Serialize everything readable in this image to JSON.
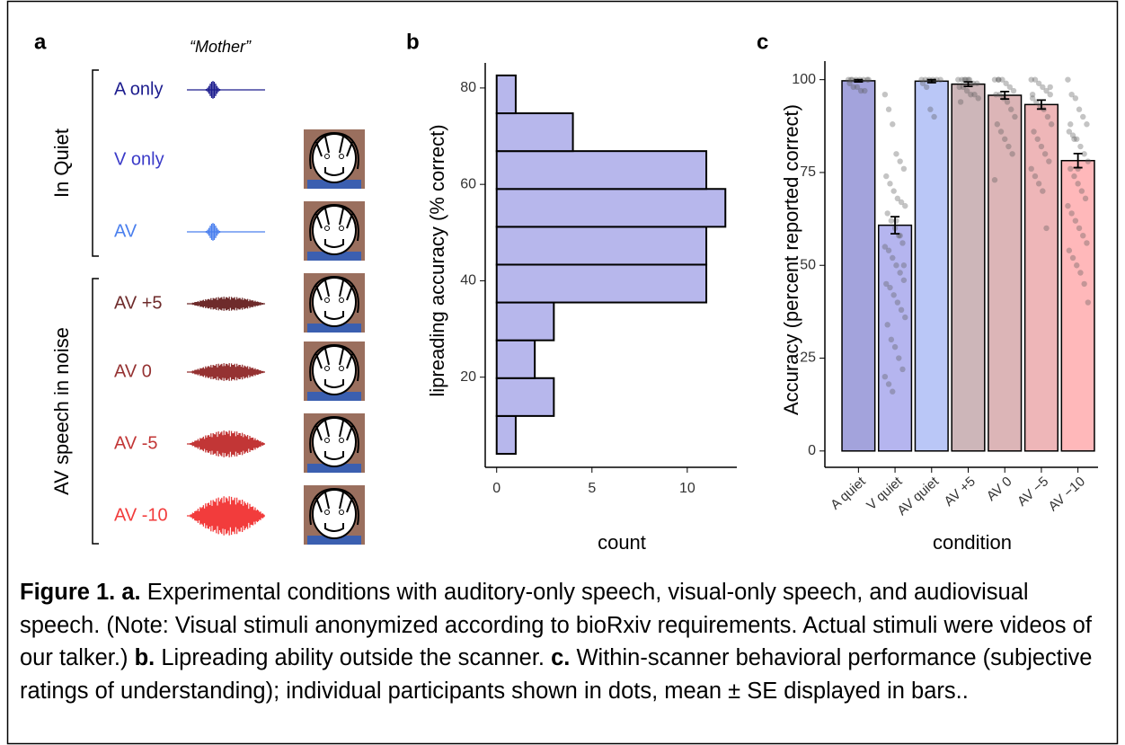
{
  "panel_labels": [
    "a",
    "b",
    "c"
  ],
  "panel_a": {
    "word": "“Mother”",
    "groups": [
      "In Quiet",
      "AV speech in noise"
    ],
    "conditions": [
      {
        "label": "A only",
        "color": "#1c1c8e"
      },
      {
        "label": "V only",
        "color": "#3a3ac8"
      },
      {
        "label": "AV",
        "color": "#4a7fee"
      },
      {
        "label": "AV +5",
        "color": "#6e2b2b"
      },
      {
        "label": "AV 0",
        "color": "#953232"
      },
      {
        "label": "AV -5",
        "color": "#c23636"
      },
      {
        "label": "AV -10",
        "color": "#f23c3c"
      }
    ]
  },
  "chart_data": [
    {
      "type": "histogram",
      "orientation": "horizontal",
      "ylabel": "lipreading accuracy (% correct)",
      "xlabel": "count",
      "bins": [
        4.1,
        11.95,
        19.8,
        27.65,
        35.5,
        43.35,
        51.2,
        59.05,
        66.9,
        74.75,
        82.6
      ],
      "counts": [
        1,
        3,
        2,
        3,
        11,
        11,
        12,
        11,
        4,
        1
      ],
      "color": "#b7b7ec",
      "edgecolor": "#000000",
      "xlim": [
        -0.6,
        12.6
      ],
      "xticks": [
        0,
        5,
        10
      ],
      "ylim": [
        1.3,
        85.2
      ],
      "yticks": [
        20,
        40,
        60,
        80
      ]
    },
    {
      "type": "bar",
      "ylabel": "Accuracy (percent reported correct)",
      "xlabel": "condition",
      "categories": [
        "A quiet",
        "V quiet",
        "AV quiet",
        "AV +5",
        "AV 0",
        "AV −5",
        "AV −10"
      ],
      "values": [
        99.7,
        60.8,
        99.6,
        98.8,
        95.8,
        93.3,
        78.2
      ],
      "errors": [
        0.3,
        2.3,
        0.4,
        0.6,
        1.0,
        1.2,
        1.9
      ],
      "colors": [
        "#a3a3dc",
        "#b5b5ef",
        "#bac7f7",
        "#cdb6b9",
        "#dcb5b7",
        "#eeb6b8",
        "#ffb8ba"
      ],
      "points": [
        [
          100,
          100,
          100,
          100,
          100,
          100,
          99,
          98,
          98,
          97,
          97,
          100,
          100
        ],
        [
          96,
          92,
          88,
          80,
          78,
          76,
          74,
          72,
          70,
          68,
          67,
          66,
          64,
          62,
          60,
          58,
          56,
          55,
          54,
          52,
          50,
          48,
          46,
          45,
          44,
          42,
          40,
          38,
          36,
          34,
          30,
          28,
          25,
          22,
          20,
          18,
          16,
          62,
          58,
          50
        ],
        [
          100,
          100,
          100,
          100,
          100,
          100,
          99,
          98,
          92,
          90
        ],
        [
          100,
          100,
          100,
          100,
          99,
          99,
          98,
          98,
          97,
          96,
          96,
          95,
          94,
          100,
          100
        ],
        [
          100,
          100,
          100,
          99,
          98,
          97,
          96,
          96,
          95,
          94,
          92,
          90,
          88,
          86,
          84,
          82,
          80,
          73,
          100
        ],
        [
          100,
          100,
          99,
          98,
          97,
          96,
          95,
          94,
          93,
          92,
          90,
          88,
          86,
          84,
          82,
          80,
          78,
          76,
          74,
          72,
          70,
          60,
          98,
          96
        ],
        [
          100,
          96,
          95,
          92,
          90,
          88,
          86,
          85,
          84,
          82,
          80,
          78,
          76,
          74,
          72,
          70,
          68,
          66,
          64,
          62,
          60,
          58,
          56,
          54,
          52,
          50,
          48,
          45,
          40,
          88,
          84,
          76
        ]
      ],
      "ylim": [
        -4.4,
        105
      ],
      "yticks": [
        0,
        25,
        50,
        75,
        100
      ]
    }
  ],
  "caption": [
    {
      "text": "Figure 1. a.",
      "bold": true
    },
    {
      "text": " Experimental conditions with auditory-only speech, visual-only speech, and audiovisual speech. (Note: Visual stimuli anonymized according to bioRxiv requirements. Actual stimuli were videos of our talker.) ",
      "bold": false
    },
    {
      "text": "b.",
      "bold": true
    },
    {
      "text": " Lipreading ability outside the scanner. ",
      "bold": false
    },
    {
      "text": "c.",
      "bold": true
    },
    {
      "text": " Within-scanner behavioral performance (subjective ratings of understanding); individual participants shown in dots, mean ± SE displayed in bars..",
      "bold": false
    }
  ]
}
